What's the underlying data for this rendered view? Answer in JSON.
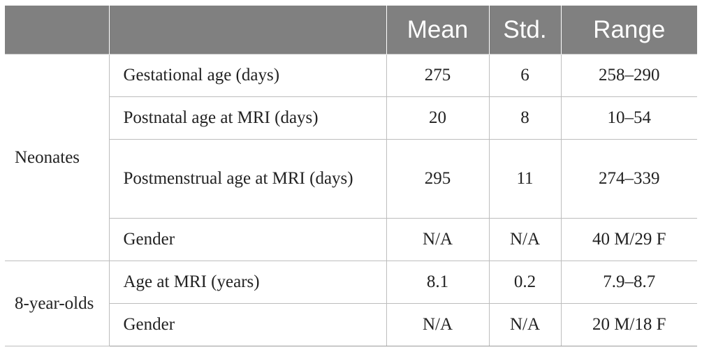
{
  "table": {
    "headers": [
      "",
      "",
      "Mean",
      "Std.",
      "Range"
    ],
    "groups": [
      {
        "name": "Neonates",
        "rows": [
          {
            "label": "Gestational age (days)",
            "mean": "275",
            "std": "6",
            "range": "258–290"
          },
          {
            "label": "Postnatal age at MRI (days)",
            "mean": "20",
            "std": "8",
            "range": "10–54"
          },
          {
            "label": "Postmenstrual age at MRI (days)",
            "mean": "295",
            "std": "11",
            "range": "274–339"
          },
          {
            "label": "Gender",
            "mean": "N/A",
            "std": "N/A",
            "range": "40 M/29 F"
          }
        ]
      },
      {
        "name": "8-year-olds",
        "rows": [
          {
            "label": "Age at MRI (years)",
            "mean": "8.1",
            "std": "0.2",
            "range": "7.9–8.7"
          },
          {
            "label": "Gender",
            "mean": "N/A",
            "std": "N/A",
            "range": "20 M/18 F"
          }
        ]
      }
    ]
  }
}
